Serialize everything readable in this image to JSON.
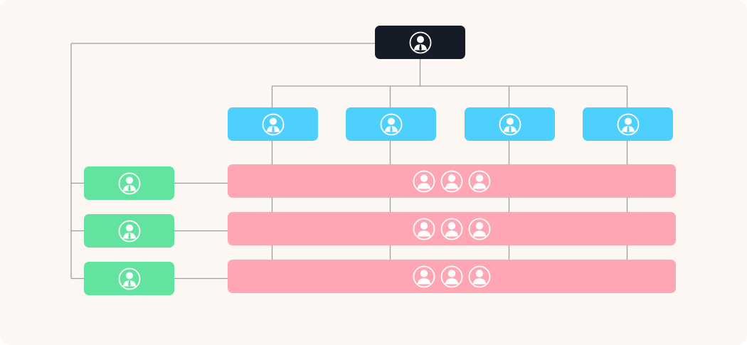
{
  "colors": {
    "background": "#fdf7f3",
    "connector": "#9e9e9e",
    "executive": "#161c27",
    "department": "#4dd0fb",
    "team_lead": "#62e39f",
    "matrix_team": "#ffa6b4",
    "icon": "#ffffff"
  },
  "nodes": {
    "executive": {
      "role": "executive",
      "icon": "manager-icon"
    },
    "departments": [
      {
        "role": "department-head",
        "icon": "manager-icon"
      },
      {
        "role": "department-head",
        "icon": "manager-icon"
      },
      {
        "role": "department-head",
        "icon": "manager-icon"
      },
      {
        "role": "department-head",
        "icon": "manager-icon"
      }
    ],
    "team_leads": [
      {
        "role": "team-lead",
        "icon": "manager-icon"
      },
      {
        "role": "team-lead",
        "icon": "manager-icon"
      },
      {
        "role": "team-lead",
        "icon": "manager-icon"
      }
    ],
    "teams": [
      {
        "role": "team",
        "members": 3,
        "icon": "person-icon"
      },
      {
        "role": "team",
        "members": 3,
        "icon": "person-icon"
      },
      {
        "role": "team",
        "members": 3,
        "icon": "person-icon"
      }
    ]
  },
  "edges": [
    {
      "from": "executive",
      "to": "departments"
    },
    {
      "from": "executive",
      "to": "team_leads"
    },
    {
      "from": "departments",
      "to": "teams"
    },
    {
      "from": "team_leads",
      "to": "teams"
    }
  ]
}
